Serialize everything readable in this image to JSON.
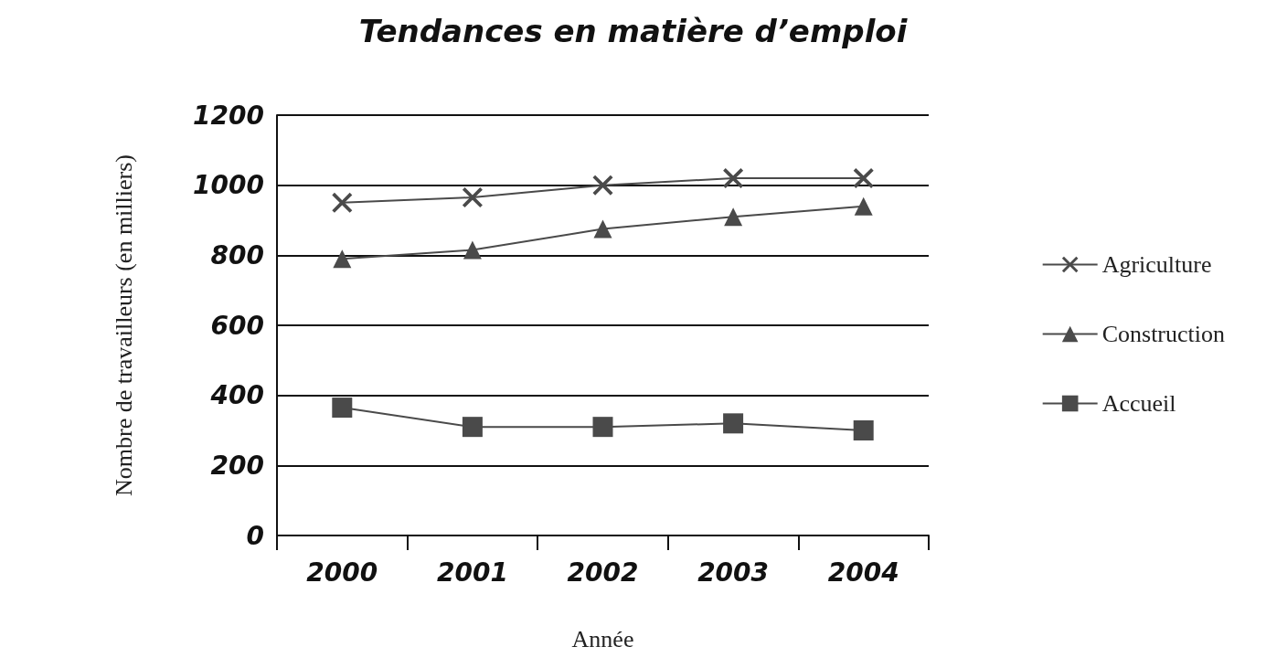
{
  "chart_data": {
    "type": "line",
    "title": "Tendances en matière d’emploi",
    "xlabel": "Année",
    "ylabel": "Nombre de travailleurs (en milliers)",
    "categories": [
      "2000",
      "2001",
      "2002",
      "2003",
      "2004"
    ],
    "series": [
      {
        "name": "Agriculture",
        "color": "#4a4a4a",
        "marker": "cross",
        "values": [
          950,
          965,
          1000,
          1020,
          1020
        ]
      },
      {
        "name": "Construction",
        "color": "#4a4a4a",
        "marker": "triangle",
        "values": [
          790,
          815,
          875,
          910,
          940
        ]
      },
      {
        "name": "Accueil",
        "color": "#4a4a4a",
        "marker": "square",
        "values": [
          365,
          310,
          310,
          320,
          300
        ]
      }
    ],
    "ylim": [
      0,
      1200
    ],
    "yticks": [
      0,
      200,
      400,
      600,
      800,
      1000,
      1200
    ],
    "grid": "y",
    "legend": "right",
    "line_style": "solid"
  }
}
